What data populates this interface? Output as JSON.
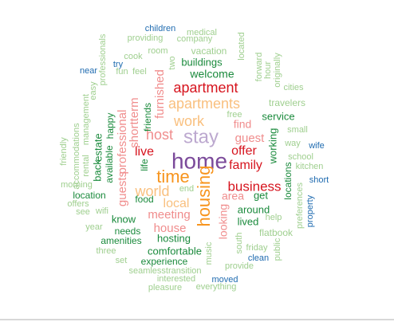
{
  "colors": {
    "purple": "#7b4a9a",
    "lavender": "#bca8cf",
    "red": "#d6141e",
    "pink": "#f08d8d",
    "orange": "#f7941d",
    "peach": "#f9c07f",
    "green": "#1a8a3c",
    "lightgreen": "#9fcf8f",
    "blue": "#1f6bb0",
    "lightblue": "#7aaad5"
  },
  "words": [
    {
      "text": "home",
      "color": "purple"
    },
    {
      "text": "housing",
      "color": "orange"
    },
    {
      "text": "stay",
      "color": "lavender"
    },
    {
      "text": "time",
      "color": "orange"
    },
    {
      "text": "apartment",
      "color": "red"
    },
    {
      "text": "business",
      "color": "red"
    },
    {
      "text": "apartments",
      "color": "peach"
    },
    {
      "text": "work",
      "color": "peach"
    },
    {
      "text": "host",
      "color": "pink"
    },
    {
      "text": "world",
      "color": "peach"
    },
    {
      "text": "family",
      "color": "red"
    },
    {
      "text": "offer",
      "color": "red"
    },
    {
      "text": "live",
      "color": "red"
    },
    {
      "text": "guest",
      "color": "pink"
    },
    {
      "text": "local",
      "color": "peach"
    },
    {
      "text": "professional",
      "color": "pink"
    },
    {
      "text": "guests",
      "color": "pink"
    },
    {
      "text": "shortterm",
      "color": "pink"
    },
    {
      "text": "furnished",
      "color": "pink"
    },
    {
      "text": "find",
      "color": "pink"
    },
    {
      "text": "house",
      "color": "pink"
    },
    {
      "text": "meeting",
      "color": "pink"
    },
    {
      "text": "hosting",
      "color": "green"
    },
    {
      "text": "looking",
      "color": "pink"
    },
    {
      "text": "area",
      "color": "pink"
    },
    {
      "text": "service",
      "color": "green"
    },
    {
      "text": "welcome",
      "color": "green"
    },
    {
      "text": "buildings",
      "color": "green"
    },
    {
      "text": "working",
      "color": "green"
    },
    {
      "text": "around",
      "color": "green"
    },
    {
      "text": "lived",
      "color": "green"
    },
    {
      "text": "get",
      "color": "green"
    },
    {
      "text": "comfortable",
      "color": "green"
    },
    {
      "text": "experience",
      "color": "green"
    },
    {
      "text": "needs",
      "color": "green"
    },
    {
      "text": "amenities",
      "color": "green"
    },
    {
      "text": "know",
      "color": "green"
    },
    {
      "text": "food",
      "color": "green"
    },
    {
      "text": "location",
      "color": "green"
    },
    {
      "text": "locations",
      "color": "green"
    },
    {
      "text": "estate",
      "color": "green"
    },
    {
      "text": "available",
      "color": "green"
    },
    {
      "text": "back",
      "color": "green"
    },
    {
      "text": "happy",
      "color": "green"
    },
    {
      "text": "friends",
      "color": "green"
    },
    {
      "text": "life",
      "color": "green"
    },
    {
      "text": "end",
      "color": "lightgreen"
    },
    {
      "text": "vacation",
      "color": "lightgreen"
    },
    {
      "text": "company",
      "color": "lightgreen"
    },
    {
      "text": "providing",
      "color": "lightgreen"
    },
    {
      "text": "medical",
      "color": "lightgreen"
    },
    {
      "text": "children",
      "color": "blue"
    },
    {
      "text": "room",
      "color": "lightgreen"
    },
    {
      "text": "cook",
      "color": "lightgreen"
    },
    {
      "text": "try",
      "color": "blue"
    },
    {
      "text": "fun",
      "color": "lightgreen"
    },
    {
      "text": "feel",
      "color": "lightgreen"
    },
    {
      "text": "two",
      "color": "lightgreen"
    },
    {
      "text": "near",
      "color": "blue"
    },
    {
      "text": "located",
      "color": "lightgreen"
    },
    {
      "text": "forward",
      "color": "lightgreen"
    },
    {
      "text": "hour",
      "color": "lightgreen"
    },
    {
      "text": "originally",
      "color": "lightgreen"
    },
    {
      "text": "cities",
      "color": "lightgreen"
    },
    {
      "text": "travelers",
      "color": "lightgreen"
    },
    {
      "text": "free",
      "color": "lightgreen"
    },
    {
      "text": "small",
      "color": "lightgreen"
    },
    {
      "text": "way",
      "color": "lightgreen"
    },
    {
      "text": "wife",
      "color": "blue"
    },
    {
      "text": "school",
      "color": "lightgreen"
    },
    {
      "text": "kitchen",
      "color": "lightgreen"
    },
    {
      "text": "short",
      "color": "blue"
    },
    {
      "text": "preferences",
      "color": "lightgreen"
    },
    {
      "text": "property",
      "color": "blue"
    },
    {
      "text": "help",
      "color": "lightgreen"
    },
    {
      "text": "flatbook",
      "color": "lightgreen"
    },
    {
      "text": "friday",
      "color": "lightgreen"
    },
    {
      "text": "south",
      "color": "lightgreen"
    },
    {
      "text": "public",
      "color": "lightgreen"
    },
    {
      "text": "clean",
      "color": "blue"
    },
    {
      "text": "provide",
      "color": "lightgreen"
    },
    {
      "text": "music",
      "color": "lightgreen"
    },
    {
      "text": "moved",
      "color": "blue"
    },
    {
      "text": "everything",
      "color": "lightgreen"
    },
    {
      "text": "pleasure",
      "color": "lightgreen"
    },
    {
      "text": "interested",
      "color": "lightgreen"
    },
    {
      "text": "seamlesstransition",
      "color": "lightgreen"
    },
    {
      "text": "set",
      "color": "lightgreen"
    },
    {
      "text": "three",
      "color": "lightgreen"
    },
    {
      "text": "year",
      "color": "lightgreen"
    },
    {
      "text": "see",
      "color": "lightgreen"
    },
    {
      "text": "wifi",
      "color": "lightgreen"
    },
    {
      "text": "offers",
      "color": "lightgreen"
    },
    {
      "text": "morning",
      "color": "lightgreen"
    },
    {
      "text": "accommodations",
      "color": "lightgreen"
    },
    {
      "text": "friendly",
      "color": "lightgreen"
    },
    {
      "text": "rental",
      "color": "lightgreen"
    },
    {
      "text": "management",
      "color": "lightgreen"
    },
    {
      "text": "easy",
      "color": "lightgreen"
    },
    {
      "text": "professionals",
      "color": "lightgreen"
    }
  ]
}
